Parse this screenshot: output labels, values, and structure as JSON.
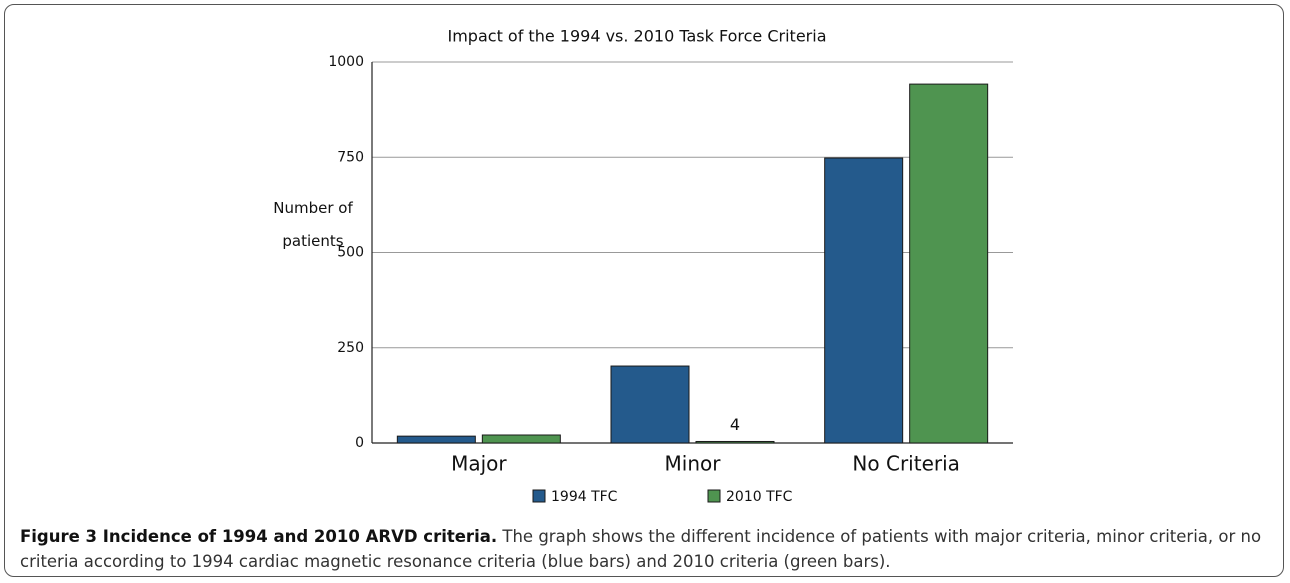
{
  "chart_data": {
    "type": "bar",
    "title": "Impact of the 1994 vs. 2010 Task Force Criteria",
    "ylabel": "Number of patients",
    "categories": [
      "Major",
      "Minor",
      "No Criteria"
    ],
    "series": [
      {
        "name": "1994 TFC",
        "color": "#245a8c",
        "values": [
          18,
          202,
          748
        ]
      },
      {
        "name": "2010 TFC",
        "color": "#4f9450",
        "values": [
          21,
          4,
          942
        ]
      }
    ],
    "ylim": [
      0,
      1000
    ],
    "yticks": [
      0,
      250,
      500,
      750,
      1000
    ],
    "grid": true
  },
  "caption": {
    "label": "Figure 3 Incidence of 1994 and 2010 ARVD criteria.",
    "text": "The graph shows the different incidence of patients with major criteria, minor criteria, or no criteria according to 1994 cardiac magnetic resonance criteria (blue bars) and 2010 criteria (green bars)."
  }
}
